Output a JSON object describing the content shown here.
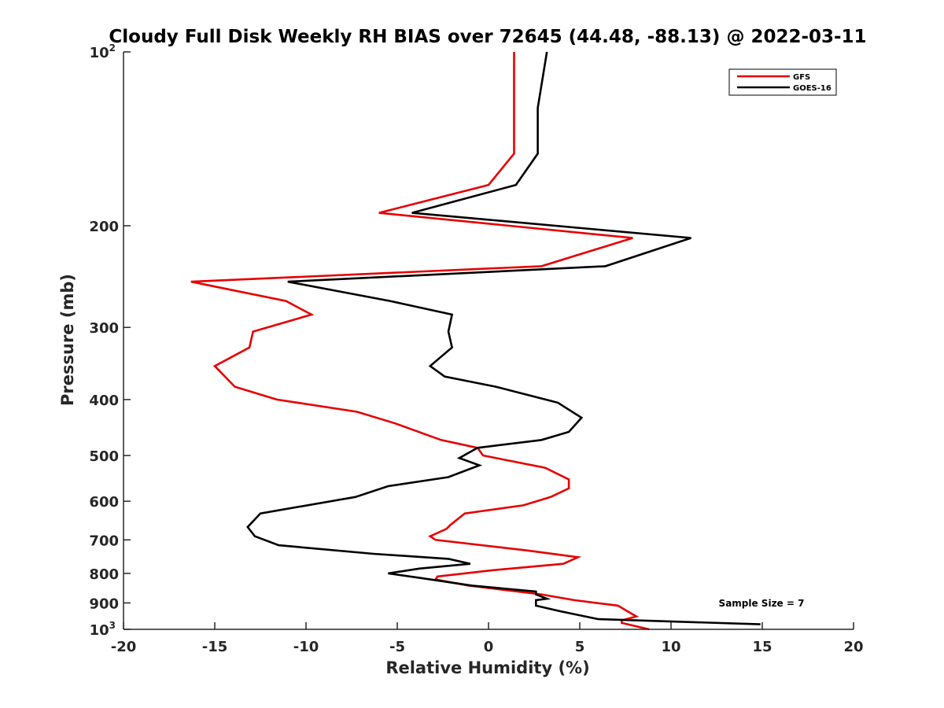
{
  "chart_data": {
    "type": "line",
    "title": "Cloudy Full Disk Weekly RH BIAS over 72645 (44.48, -88.13) @ 2022-03-11",
    "xlabel": "Relative Humidity (%)",
    "ylabel": "Pressure (mb)",
    "xlim": [
      -20,
      20
    ],
    "ylim": [
      100,
      1000
    ],
    "y_scale": "log",
    "y_reversed": true,
    "x_ticks": [
      "-20",
      "-15",
      "-10",
      "-5",
      "0",
      "5",
      "10",
      "15",
      "20"
    ],
    "y_ticks": [
      {
        "value": 100,
        "base": "10",
        "exp": "2"
      },
      {
        "value": 200,
        "label": "200"
      },
      {
        "value": 300,
        "label": "300"
      },
      {
        "value": 400,
        "label": "400"
      },
      {
        "value": 500,
        "label": "500"
      },
      {
        "value": 600,
        "label": "600"
      },
      {
        "value": 700,
        "label": "700"
      },
      {
        "value": 800,
        "label": "800"
      },
      {
        "value": 900,
        "label": "900"
      },
      {
        "value": 1000,
        "base": "10",
        "exp": "3"
      }
    ],
    "legend_position": "top-right",
    "annotation": "Sample Size = 7",
    "series": [
      {
        "name": "GFS",
        "color": "#e60000",
        "points": [
          [
            1.4,
            100
          ],
          [
            1.4,
            125
          ],
          [
            1.4,
            150
          ],
          [
            0.0,
            170
          ],
          [
            -6.0,
            190
          ],
          [
            7.9,
            210
          ],
          [
            2.9,
            235
          ],
          [
            -16.3,
            250
          ],
          [
            -11.1,
            270
          ],
          [
            -9.7,
            285
          ],
          [
            -12.9,
            305
          ],
          [
            -13.1,
            325
          ],
          [
            -15.0,
            350
          ],
          [
            -13.9,
            380
          ],
          [
            -11.6,
            400
          ],
          [
            -7.2,
            420
          ],
          [
            -5.1,
            440
          ],
          [
            -2.6,
            470
          ],
          [
            -0.6,
            485
          ],
          [
            -0.3,
            500
          ],
          [
            3.1,
            525
          ],
          [
            4.4,
            550
          ],
          [
            4.4,
            570
          ],
          [
            3.4,
            590
          ],
          [
            1.9,
            610
          ],
          [
            -1.3,
            630
          ],
          [
            -2.1,
            660
          ],
          [
            -2.3,
            670
          ],
          [
            -3.2,
            690
          ],
          [
            -2.9,
            700
          ],
          [
            2.1,
            730
          ],
          [
            4.9,
            750
          ],
          [
            4.1,
            770
          ],
          [
            0.2,
            790
          ],
          [
            -2.8,
            810
          ],
          [
            -2.9,
            820
          ],
          [
            -1.1,
            840
          ],
          [
            2.9,
            870
          ],
          [
            4.7,
            890
          ],
          [
            7.1,
            910
          ],
          [
            7.6,
            930
          ],
          [
            8.1,
            950
          ],
          [
            7.3,
            965
          ],
          [
            7.3,
            975
          ],
          [
            8.8,
            1000
          ]
        ]
      },
      {
        "name": "GOES-16",
        "color": "#000000",
        "points": [
          [
            3.2,
            100
          ],
          [
            2.7,
            125
          ],
          [
            2.7,
            150
          ],
          [
            1.5,
            170
          ],
          [
            -4.2,
            190
          ],
          [
            11.1,
            210
          ],
          [
            6.4,
            235
          ],
          [
            -11.0,
            250
          ],
          [
            -5.4,
            270
          ],
          [
            -2.0,
            285
          ],
          [
            -2.2,
            305
          ],
          [
            -2.0,
            325
          ],
          [
            -3.2,
            350
          ],
          [
            -2.4,
            365
          ],
          [
            0.4,
            380
          ],
          [
            3.8,
            405
          ],
          [
            5.1,
            430
          ],
          [
            4.4,
            455
          ],
          [
            2.9,
            470
          ],
          [
            -0.6,
            485
          ],
          [
            -1.6,
            505
          ],
          [
            -0.5,
            520
          ],
          [
            -2.2,
            545
          ],
          [
            -5.5,
            565
          ],
          [
            -7.3,
            590
          ],
          [
            -12.5,
            630
          ],
          [
            -13.2,
            665
          ],
          [
            -12.8,
            690
          ],
          [
            -11.5,
            715
          ],
          [
            -6.3,
            740
          ],
          [
            -2.2,
            755
          ],
          [
            -1.0,
            770
          ],
          [
            -3.8,
            785
          ],
          [
            -5.5,
            800
          ],
          [
            -3.7,
            815
          ],
          [
            -0.9,
            840
          ],
          [
            2.6,
            860
          ],
          [
            2.6,
            870
          ],
          [
            3.2,
            885
          ],
          [
            2.6,
            890
          ],
          [
            2.6,
            910
          ],
          [
            3.9,
            930
          ],
          [
            6.0,
            960
          ],
          [
            14.9,
            980
          ]
        ]
      }
    ]
  }
}
